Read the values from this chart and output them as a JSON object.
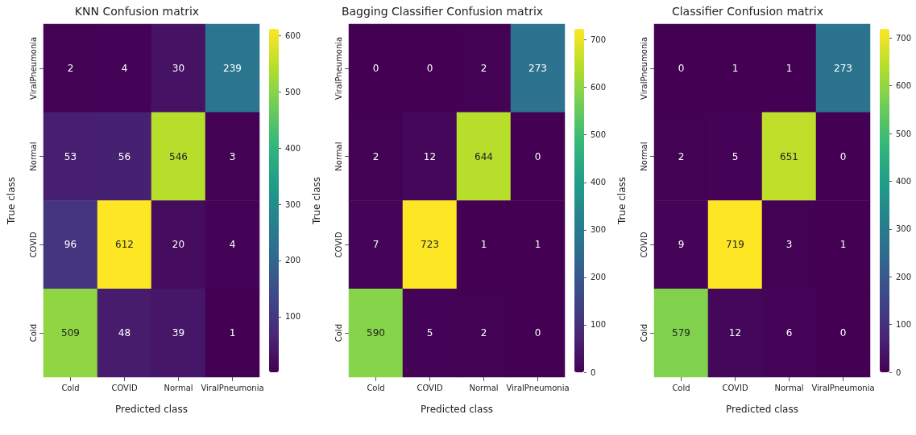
{
  "chart_data": [
    {
      "type": "heatmap",
      "title": "KNN Confusion matrix",
      "xlabel": "Predicted class",
      "ylabel": "True class",
      "categories": [
        "Cold",
        "COVID",
        "Normal",
        "ViralPneumonia"
      ],
      "y_categories": [
        "ViralPneumonia",
        "Normal",
        "COVID",
        "Cold"
      ],
      "cells": [
        [
          2,
          4,
          30,
          239
        ],
        [
          53,
          56,
          546,
          3
        ],
        [
          96,
          612,
          20,
          4
        ],
        [
          509,
          48,
          39,
          1
        ]
      ],
      "clim": [
        1,
        612
      ],
      "cticks": [
        100,
        200,
        300,
        400,
        500,
        600
      ],
      "data_labels": true
    },
    {
      "type": "heatmap",
      "title": "Bagging Classifier Confusion matrix",
      "xlabel": "Predicted class",
      "ylabel": "True class",
      "categories": [
        "Cold",
        "COVID",
        "Normal",
        "ViralPneumonia"
      ],
      "y_categories": [
        "ViralPneumonia",
        "Normal",
        "COVID",
        "Cold"
      ],
      "cells": [
        [
          0,
          0,
          2,
          273
        ],
        [
          2,
          12,
          644,
          0
        ],
        [
          7,
          723,
          1,
          1
        ],
        [
          590,
          5,
          2,
          0
        ]
      ],
      "clim": [
        0,
        723
      ],
      "cticks": [
        0,
        100,
        200,
        300,
        400,
        500,
        600,
        700
      ],
      "data_labels": true
    },
    {
      "type": "heatmap",
      "title": "Classifier Confusion matrix",
      "xlabel": "Predicted class",
      "ylabel": "True class",
      "categories": [
        "Cold",
        "COVID",
        "Normal",
        "ViralPneumonia"
      ],
      "y_categories": [
        "ViralPneumonia",
        "Normal",
        "COVID",
        "Cold"
      ],
      "cells": [
        [
          0,
          1,
          1,
          273
        ],
        [
          2,
          5,
          651,
          0
        ],
        [
          9,
          719,
          3,
          1
        ],
        [
          579,
          12,
          6,
          0
        ]
      ],
      "clim": [
        0,
        719
      ],
      "cticks": [
        0,
        100,
        200,
        300,
        400,
        500,
        600,
        700
      ],
      "data_labels": true
    }
  ]
}
